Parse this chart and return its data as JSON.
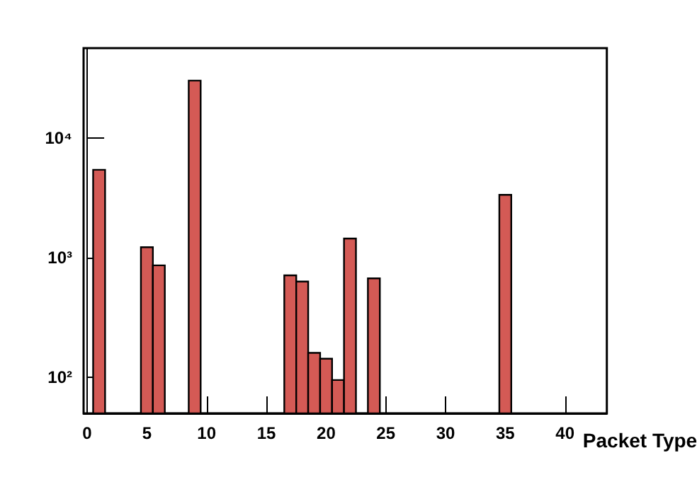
{
  "chart_data": {
    "type": "histogram",
    "xlabel": "Packet Type",
    "bins": [
      0.5,
      1.5,
      2.5,
      3.5,
      4.5,
      5.5,
      6.5,
      7.5,
      8.5,
      9.5,
      10.5,
      11.5,
      12.5,
      13.5,
      14.5,
      15.5,
      16.5,
      17.5,
      18.5,
      19.5,
      20.5,
      21.5,
      22.5,
      23.5,
      24.5,
      25.5,
      26.5,
      27.5,
      28.5,
      29.5,
      30.5,
      31.5,
      32.5,
      33.5,
      34.5,
      35.5
    ],
    "values": [
      5400,
      null,
      null,
      null,
      1220,
      860,
      null,
      null,
      30000,
      null,
      null,
      null,
      null,
      null,
      null,
      null,
      710,
      630,
      160,
      143,
      95,
      1440,
      null,
      670,
      null,
      null,
      null,
      null,
      null,
      null,
      null,
      null,
      null,
      null,
      3340
    ],
    "color": "#d45a55",
    "log": "y",
    "xlim": [
      -0.3,
      43.5
    ],
    "xticks": [
      0,
      5,
      10,
      15,
      20,
      25,
      30,
      35,
      40
    ],
    "ylim": [
      50,
      56000
    ],
    "yticks": [
      {
        "value": 100,
        "label": "10²"
      },
      {
        "value": 1000,
        "label": "10³"
      },
      {
        "value": 10000,
        "label": "10⁴"
      }
    ],
    "grid": false
  }
}
